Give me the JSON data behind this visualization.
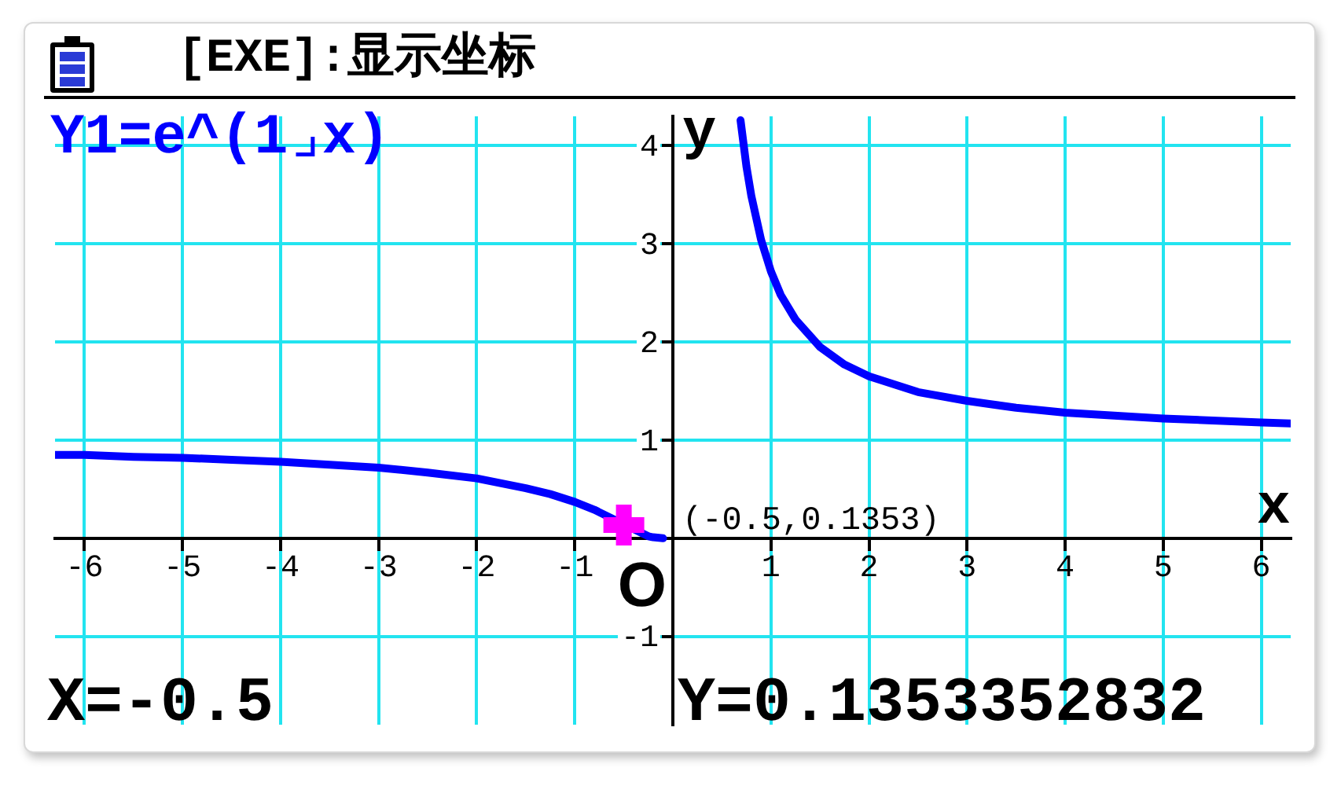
{
  "chart_data": {
    "type": "line",
    "title": "[EXE]:显示坐标",
    "xlabel": "x",
    "ylabel": "y",
    "xlim": [
      -6.3,
      6.3
    ],
    "ylim": [
      -1.9,
      4.3
    ],
    "xticks": [
      -6,
      -5,
      -4,
      -3,
      -2,
      -1,
      1,
      2,
      3,
      4,
      5,
      6
    ],
    "yticks": [
      -1,
      1,
      2,
      3,
      4
    ],
    "grid": true,
    "marker": "none",
    "line_style": "solid",
    "series": [
      {
        "type": "scatter",
        "marker": "cross",
        "color": "#ff00ff",
        "x": [
          -0.5
        ],
        "values": [
          0.1353
        ]
      },
      {
        "name": "Y1=e^(1⌟x)",
        "color": "#0000ff",
        "x": [
          -6.3,
          -6,
          -5.5,
          -5,
          -4.5,
          -4,
          -3.5,
          -3,
          -2.5,
          -2,
          -1.75,
          -1.5,
          -1.25,
          -1,
          -0.9,
          -0.8,
          -0.25,
          -0.2,
          -0.1,
          0,
          0.69,
          0.75,
          0.8,
          0.9,
          1,
          1.1,
          1.25,
          1.5,
          1.75,
          2,
          2.5,
          3,
          3.5,
          4,
          4.5,
          5,
          5.5,
          6,
          6.3
        ],
        "values": [
          0.85,
          0.85,
          0.83,
          0.82,
          0.8,
          0.78,
          0.75,
          0.72,
          0.67,
          0.61,
          0.56,
          0.51,
          0.45,
          0.37,
          0.33,
          0.29,
          0.02,
          0.01,
          0,
          null,
          4.26,
          3.79,
          3.49,
          3.04,
          2.72,
          2.48,
          2.23,
          1.95,
          1.77,
          1.65,
          1.49,
          1.4,
          1.33,
          1.28,
          1.25,
          1.22,
          1.2,
          1.18,
          1.17
        ]
      }
    ],
    "annotations": [
      {
        "text": "(-0.5,0.1353)",
        "x": -0.5,
        "y": 0.1353
      },
      "O",
      "X=-0.5",
      "Y=0.1353352832"
    ]
  }
}
